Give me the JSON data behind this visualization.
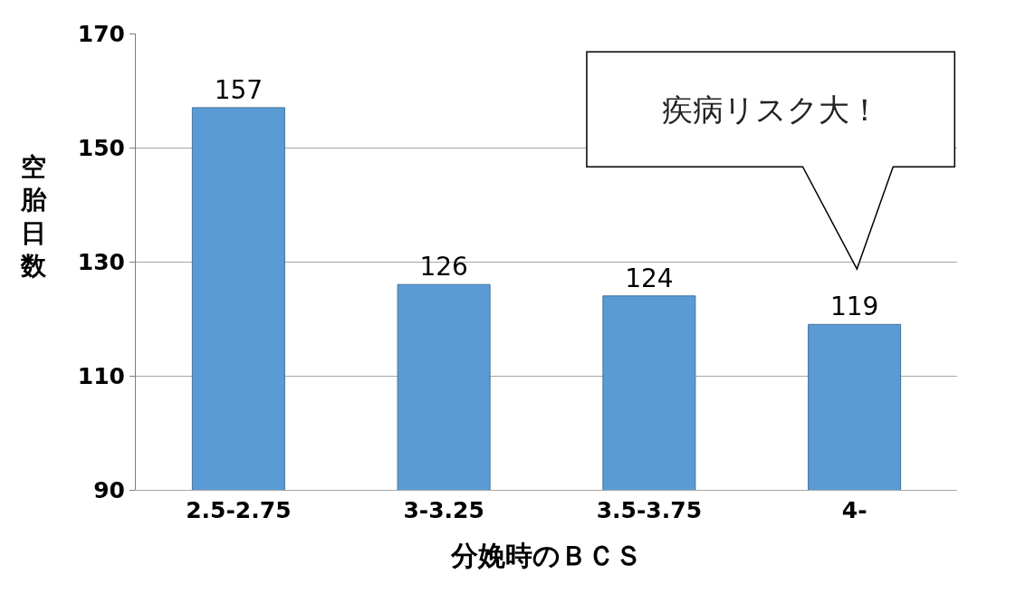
{
  "chart_data": {
    "type": "bar",
    "xlabel": "分娩時のＢＣＳ",
    "ylabel": "空胎日数",
    "categories": [
      "2.5-2.75",
      "3-3.25",
      "3.5-3.75",
      "4-"
    ],
    "values": [
      157,
      126,
      124,
      119
    ],
    "color": "#5b9bd5",
    "data_labels": true,
    "ylim": [
      90,
      170
    ],
    "yticks": [
      90,
      110,
      130,
      150,
      170
    ],
    "grid": "y",
    "legend": false,
    "annotations": [
      "疾病リスク大！"
    ]
  }
}
